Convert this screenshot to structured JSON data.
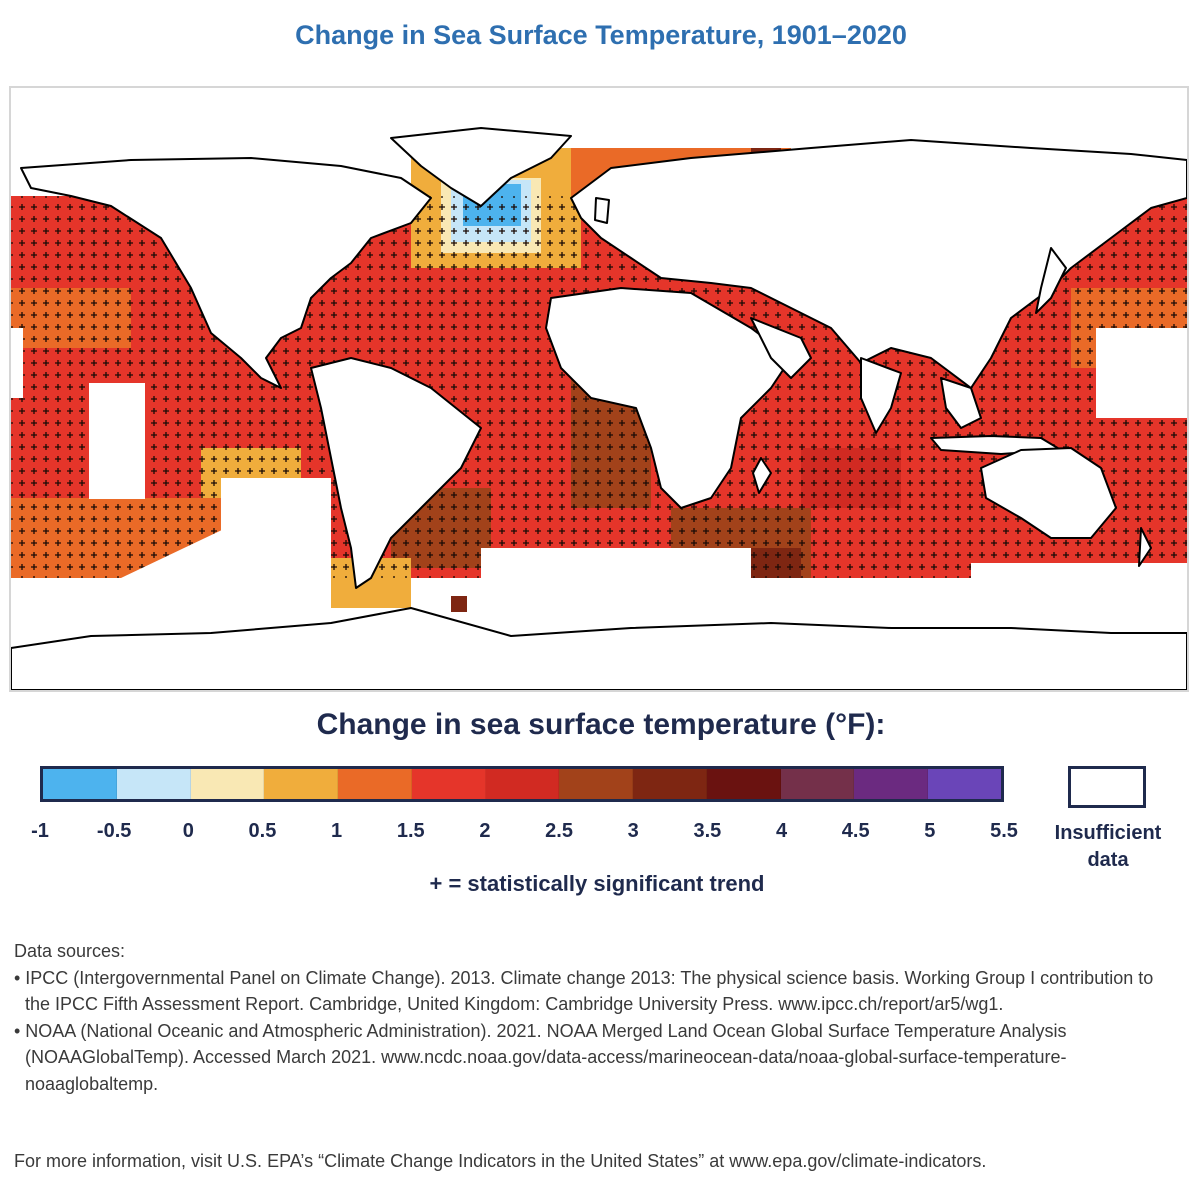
{
  "title": "Change in Sea Surface Temperature, 1901–2020",
  "legend": {
    "title": "Change in sea surface temperature (°F):",
    "bins": [
      {
        "from": -1,
        "to": -0.5,
        "color": "#4db3ee"
      },
      {
        "from": -0.5,
        "to": 0,
        "color": "#c6e6f8"
      },
      {
        "from": 0,
        "to": 0.5,
        "color": "#f9e8b4"
      },
      {
        "from": 0.5,
        "to": 1,
        "color": "#f0ad3c"
      },
      {
        "from": 1,
        "to": 1.5,
        "color": "#ea6a27"
      },
      {
        "from": 1.5,
        "to": 2,
        "color": "#e5352a"
      },
      {
        "from": 2,
        "to": 2.5,
        "color": "#d12a22"
      },
      {
        "from": 2.5,
        "to": 3,
        "color": "#a2421a"
      },
      {
        "from": 3,
        "to": 3.5,
        "color": "#7e2612"
      },
      {
        "from": 3.5,
        "to": 4,
        "color": "#6a1210"
      },
      {
        "from": 4,
        "to": 4.5,
        "color": "#74304a"
      },
      {
        "from": 4.5,
        "to": 5,
        "color": "#6b2a80"
      },
      {
        "from": 5,
        "to": 5.5,
        "color": "#6a45b8"
      }
    ],
    "ticks": [
      "-1",
      "-0.5",
      "0",
      "0.5",
      "1",
      "1.5",
      "2",
      "2.5",
      "3",
      "3.5",
      "4",
      "4.5",
      "5",
      "5.5"
    ],
    "insufficient_label_line1": "Insufficient",
    "insufficient_label_line2": "data",
    "significance_note": "+ = statistically significant trend"
  },
  "sources": {
    "heading": "Data sources:",
    "items": [
      "• IPCC (Intergovernmental Panel on Climate Change). 2013. Climate change 2013: The physical science basis. Working Group I contribution to the IPCC Fifth Assessment Report. Cambridge, United Kingdom: Cambridge University Press. www.ipcc.ch/report/ar5/wg1.",
      "• NOAA (National Oceanic and Atmospheric Administration). 2021. NOAA Merged Land Ocean Global Surface Temperature Analysis (NOAAGlobalTemp). Accessed March 2021. www.ncdc.noaa.gov/data-access/marineocean-data/noaa-global-surface-temperature-noaaglobaltemp."
    ]
  },
  "more_info": "For more information, visit U.S. EPA’s “Climate Change Indicators in the United States” at www.epa.gov/climate-indicators.",
  "map": {
    "ocean_default_color": "#e5352a",
    "land_color": "#ffffff",
    "outline_color": "#000000"
  }
}
